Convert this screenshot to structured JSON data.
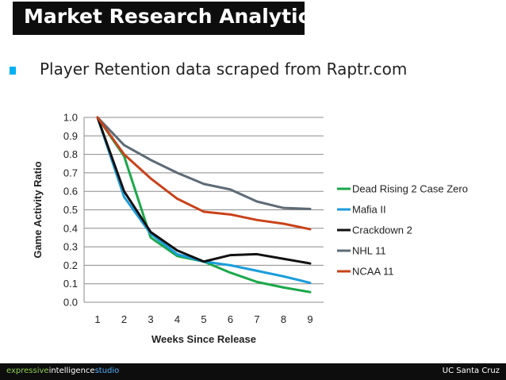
{
  "slide": {
    "title": "Market Research Analytics",
    "bullet": "Player Retention data scraped from Raptr.com"
  },
  "footer": {
    "brand_part1": "expressive",
    "brand_part2": "intelligence",
    "brand_part3": "studio",
    "right": "UC Santa Cruz"
  },
  "colors": {
    "title_bg": "#0d0d0d",
    "bullet": "#00b0f0"
  },
  "chart_data": {
    "type": "line",
    "title": "",
    "xlabel": "Weeks Since Release",
    "ylabel": "Game Activity Ratio",
    "x": [
      1,
      2,
      3,
      4,
      5,
      6,
      7,
      8,
      9
    ],
    "ylim": [
      0,
      1.0
    ],
    "yticks": [
      "0.0",
      "0.1",
      "0.2",
      "0.3",
      "0.4",
      "0.5",
      "0.6",
      "0.7",
      "0.8",
      "0.9",
      "1.0"
    ],
    "xticks": [
      "1",
      "2",
      "3",
      "4",
      "5",
      "6",
      "7",
      "8",
      "9"
    ],
    "grid": true,
    "legend": "right",
    "series": [
      {
        "name": "Dead Rising 2 Case Zero",
        "color": "#1aa84a",
        "values": [
          1.0,
          0.79,
          0.35,
          0.25,
          0.22,
          0.16,
          0.11,
          0.08,
          0.055
        ]
      },
      {
        "name": "Mafia II",
        "color": "#1b9ddb",
        "values": [
          1.0,
          0.57,
          0.37,
          0.26,
          0.22,
          0.2,
          0.17,
          0.14,
          0.105
        ]
      },
      {
        "name": "Crackdown 2",
        "color": "#111111",
        "values": [
          1.0,
          0.6,
          0.38,
          0.28,
          0.22,
          0.255,
          0.26,
          0.235,
          0.21
        ]
      },
      {
        "name": "NHL 11",
        "color": "#5d6b76",
        "values": [
          1.0,
          0.85,
          0.77,
          0.7,
          0.64,
          0.61,
          0.545,
          0.51,
          0.505
        ]
      },
      {
        "name": "NCAA 11",
        "color": "#c9421a",
        "values": [
          1.0,
          0.8,
          0.67,
          0.56,
          0.49,
          0.475,
          0.445,
          0.425,
          0.395
        ]
      }
    ]
  }
}
